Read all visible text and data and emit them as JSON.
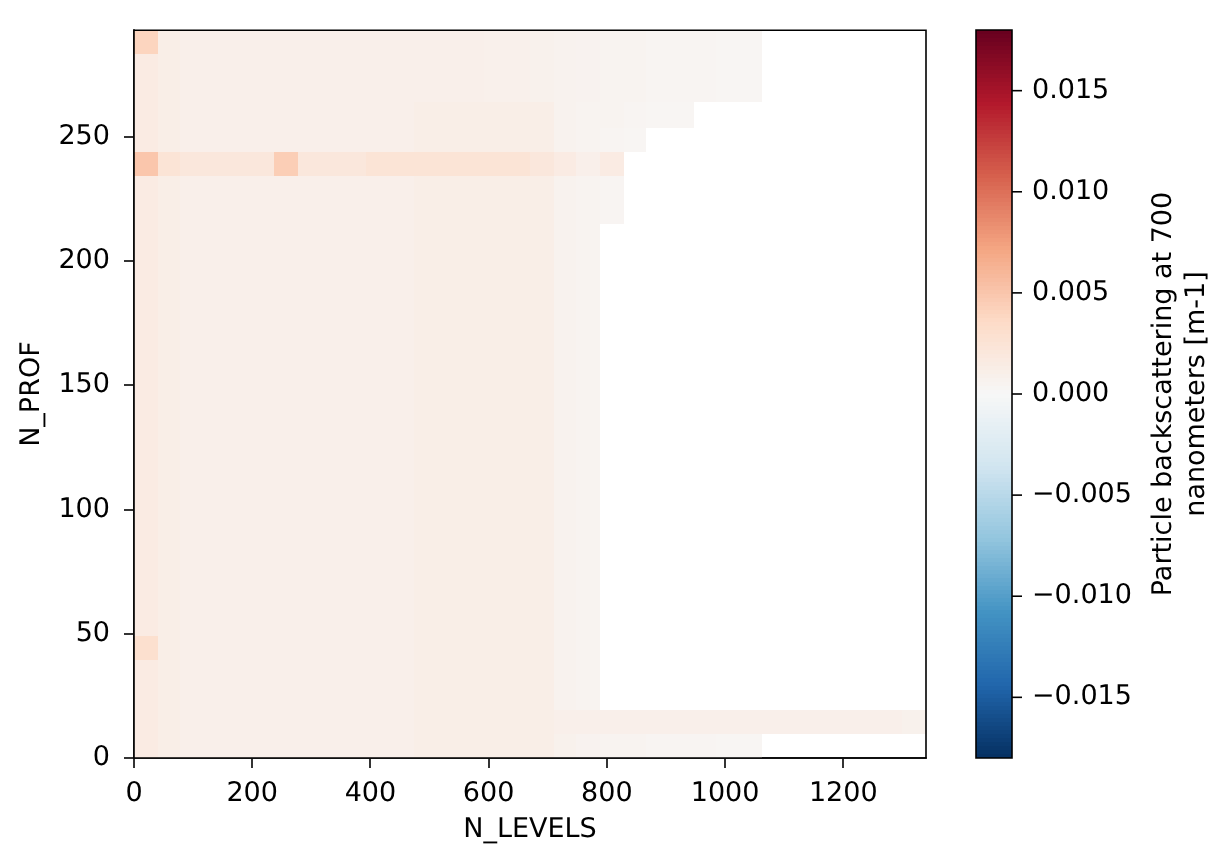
{
  "chart_data": {
    "type": "heatmap",
    "xlabel": "N_LEVELS",
    "ylabel": "N_PROF",
    "clabel": "Particle backscattering at 700 nanometers [m-1]",
    "xlim": [
      0,
      1340
    ],
    "xticks": [
      0,
      200,
      400,
      600,
      800,
      1000,
      1200
    ],
    "ylim": [
      0,
      293
    ],
    "yticks": [
      0,
      50,
      100,
      150,
      200,
      250
    ],
    "clim": [
      -0.018,
      0.018
    ],
    "cticks": [
      {
        "value": -0.015,
        "label": "−0.015"
      },
      {
        "value": -0.01,
        "label": "−0.010"
      },
      {
        "value": -0.005,
        "label": "−0.005"
      },
      {
        "value": 0,
        "label": "0.000"
      },
      0.005,
      {
        "value": 0.01,
        "label": "0.010"
      },
      0.015
    ],
    "cells": [
      [
        0.004,
        0.0012,
        0.001,
        0.001,
        0.001,
        0.001,
        0.001,
        0.001,
        0.001,
        0.001,
        0.001,
        0.001,
        0.001,
        0.001,
        0.001,
        0.0009,
        0.0009,
        0.0008,
        0.0007,
        0.0006,
        0.0005,
        0.0005,
        0.0004,
        0.0004,
        0.0004,
        0.0003,
        0.0003,
        null,
        null,
        null,
        null,
        null,
        null,
        null
      ],
      [
        0.0015,
        0.0012,
        0.001,
        0.001,
        0.001,
        0.001,
        0.001,
        0.001,
        0.001,
        0.001,
        0.001,
        0.001,
        0.001,
        0.001,
        0.001,
        0.0009,
        0.0009,
        0.0008,
        0.0007,
        0.0006,
        0.0005,
        0.0005,
        0.0004,
        0.0004,
        0.0004,
        0.0003,
        0.0003,
        null,
        null,
        null,
        null,
        null,
        null,
        null
      ],
      [
        0.0015,
        0.0012,
        0.001,
        0.001,
        0.001,
        0.001,
        0.001,
        0.001,
        0.001,
        0.001,
        0.001,
        0.001,
        0.001,
        0.001,
        0.001,
        0.0009,
        0.0009,
        0.0008,
        0.0007,
        0.0006,
        0.0005,
        0.0005,
        0.0004,
        0.0004,
        0.0004,
        0.0003,
        0.0003,
        null,
        null,
        null,
        null,
        null,
        null,
        null
      ],
      [
        0.0015,
        0.0012,
        0.001,
        0.001,
        0.001,
        0.001,
        0.001,
        0.001,
        0.001,
        0.001,
        0.001,
        0.001,
        0.0012,
        0.0012,
        0.0012,
        0.0012,
        0.0012,
        0.0012,
        0.0007,
        0.0005,
        0.0005,
        0.0004,
        0.0003,
        0.0003,
        null,
        null,
        null,
        null,
        null,
        null,
        null,
        null,
        null,
        null
      ],
      [
        0.0015,
        0.0012,
        0.001,
        0.001,
        0.001,
        0.001,
        0.001,
        0.001,
        0.001,
        0.001,
        0.001,
        0.001,
        0.0012,
        0.0012,
        0.0012,
        0.0012,
        0.0012,
        0.0012,
        0.0007,
        0.0005,
        0.0004,
        0.0003,
        null,
        null,
        null,
        null,
        null,
        null,
        null,
        null,
        null,
        null,
        null,
        null
      ],
      [
        0.005,
        0.0025,
        0.002,
        0.002,
        0.002,
        0.002,
        0.0045,
        0.002,
        0.002,
        0.002,
        0.0025,
        0.0025,
        0.0025,
        0.0025,
        0.0025,
        0.0025,
        0.0025,
        0.002,
        0.0015,
        0.001,
        0.0015,
        null,
        null,
        null,
        null,
        null,
        null,
        null,
        null,
        null,
        null,
        null,
        null,
        null
      ],
      [
        0.0015,
        0.0012,
        0.001,
        0.001,
        0.001,
        0.001,
        0.001,
        0.001,
        0.001,
        0.001,
        0.001,
        0.001,
        0.0012,
        0.0012,
        0.0012,
        0.0012,
        0.0012,
        0.0012,
        0.0007,
        0.0005,
        0.0004,
        null,
        null,
        null,
        null,
        null,
        null,
        null,
        null,
        null,
        null,
        null,
        null,
        null
      ],
      [
        0.0015,
        0.0012,
        0.001,
        0.001,
        0.001,
        0.001,
        0.001,
        0.001,
        0.001,
        0.001,
        0.001,
        0.001,
        0.0012,
        0.0012,
        0.0012,
        0.0012,
        0.0012,
        0.0012,
        0.0007,
        0.0005,
        0.0004,
        null,
        null,
        null,
        null,
        null,
        null,
        null,
        null,
        null,
        null,
        null,
        null,
        null
      ],
      [
        0.0015,
        0.0012,
        0.001,
        0.001,
        0.001,
        0.001,
        0.001,
        0.001,
        0.001,
        0.001,
        0.001,
        0.001,
        0.0012,
        0.0012,
        0.0012,
        0.0012,
        0.0012,
        0.0012,
        0.0007,
        0.0005,
        null,
        null,
        null,
        null,
        null,
        null,
        null,
        null,
        null,
        null,
        null,
        null,
        null,
        null
      ],
      [
        0.0015,
        0.0012,
        0.001,
        0.001,
        0.001,
        0.001,
        0.001,
        0.001,
        0.001,
        0.001,
        0.001,
        0.001,
        0.0012,
        0.0012,
        0.0012,
        0.0012,
        0.0012,
        0.0012,
        0.0007,
        0.0005,
        null,
        null,
        null,
        null,
        null,
        null,
        null,
        null,
        null,
        null,
        null,
        null,
        null,
        null
      ],
      [
        0.0015,
        0.0012,
        0.001,
        0.001,
        0.001,
        0.001,
        0.001,
        0.001,
        0.001,
        0.001,
        0.001,
        0.001,
        0.0012,
        0.0012,
        0.0012,
        0.0012,
        0.0012,
        0.0012,
        0.0007,
        0.0005,
        null,
        null,
        null,
        null,
        null,
        null,
        null,
        null,
        null,
        null,
        null,
        null,
        null,
        null
      ],
      [
        0.0015,
        0.0012,
        0.001,
        0.001,
        0.001,
        0.001,
        0.001,
        0.001,
        0.001,
        0.001,
        0.001,
        0.001,
        0.0012,
        0.0012,
        0.0012,
        0.0012,
        0.0012,
        0.0012,
        0.0007,
        0.0005,
        null,
        null,
        null,
        null,
        null,
        null,
        null,
        null,
        null,
        null,
        null,
        null,
        null,
        null
      ],
      [
        0.0015,
        0.0012,
        0.001,
        0.001,
        0.001,
        0.001,
        0.001,
        0.001,
        0.001,
        0.001,
        0.001,
        0.001,
        0.0012,
        0.0012,
        0.0012,
        0.0012,
        0.0012,
        0.0012,
        0.0007,
        0.0005,
        null,
        null,
        null,
        null,
        null,
        null,
        null,
        null,
        null,
        null,
        null,
        null,
        null,
        null
      ],
      [
        0.0015,
        0.0012,
        0.001,
        0.001,
        0.001,
        0.001,
        0.001,
        0.001,
        0.001,
        0.001,
        0.001,
        0.001,
        0.0012,
        0.0012,
        0.0012,
        0.0012,
        0.0012,
        0.0012,
        0.0007,
        0.0005,
        null,
        null,
        null,
        null,
        null,
        null,
        null,
        null,
        null,
        null,
        null,
        null,
        null,
        null
      ],
      [
        0.0015,
        0.0012,
        0.001,
        0.001,
        0.001,
        0.001,
        0.001,
        0.001,
        0.001,
        0.001,
        0.001,
        0.001,
        0.0012,
        0.0012,
        0.0012,
        0.0012,
        0.0012,
        0.0012,
        0.0007,
        0.0005,
        null,
        null,
        null,
        null,
        null,
        null,
        null,
        null,
        null,
        null,
        null,
        null,
        null,
        null
      ],
      [
        0.0015,
        0.0012,
        0.001,
        0.001,
        0.001,
        0.001,
        0.001,
        0.001,
        0.001,
        0.001,
        0.001,
        0.001,
        0.0012,
        0.0012,
        0.0012,
        0.0012,
        0.0012,
        0.0012,
        0.0007,
        0.0005,
        null,
        null,
        null,
        null,
        null,
        null,
        null,
        null,
        null,
        null,
        null,
        null,
        null,
        null
      ],
      [
        0.0015,
        0.0012,
        0.001,
        0.001,
        0.001,
        0.001,
        0.001,
        0.001,
        0.001,
        0.001,
        0.001,
        0.001,
        0.0012,
        0.0012,
        0.0012,
        0.0012,
        0.0012,
        0.0012,
        0.0007,
        0.0005,
        null,
        null,
        null,
        null,
        null,
        null,
        null,
        null,
        null,
        null,
        null,
        null,
        null,
        null
      ],
      [
        0.0015,
        0.0012,
        0.001,
        0.001,
        0.001,
        0.001,
        0.001,
        0.001,
        0.001,
        0.001,
        0.001,
        0.001,
        0.0012,
        0.0012,
        0.0012,
        0.0012,
        0.0012,
        0.0012,
        0.0007,
        0.0005,
        null,
        null,
        null,
        null,
        null,
        null,
        null,
        null,
        null,
        null,
        null,
        null,
        null,
        null
      ],
      [
        0.0015,
        0.0012,
        0.001,
        0.001,
        0.001,
        0.001,
        0.001,
        0.001,
        0.001,
        0.001,
        0.001,
        0.001,
        0.0012,
        0.0012,
        0.0012,
        0.0012,
        0.0012,
        0.0012,
        0.0007,
        0.0005,
        null,
        null,
        null,
        null,
        null,
        null,
        null,
        null,
        null,
        null,
        null,
        null,
        null,
        null
      ],
      [
        0.0015,
        0.0012,
        0.001,
        0.001,
        0.001,
        0.001,
        0.001,
        0.001,
        0.001,
        0.001,
        0.001,
        0.001,
        0.0012,
        0.0012,
        0.0012,
        0.0012,
        0.0012,
        0.0012,
        0.0007,
        0.0005,
        null,
        null,
        null,
        null,
        null,
        null,
        null,
        null,
        null,
        null,
        null,
        null,
        null,
        null
      ],
      [
        0.0015,
        0.0012,
        0.001,
        0.001,
        0.001,
        0.001,
        0.001,
        0.001,
        0.001,
        0.001,
        0.001,
        0.001,
        0.0012,
        0.0012,
        0.0012,
        0.0012,
        0.0012,
        0.0012,
        0.0007,
        0.0005,
        null,
        null,
        null,
        null,
        null,
        null,
        null,
        null,
        null,
        null,
        null,
        null,
        null,
        null
      ],
      [
        0.0015,
        0.0012,
        0.001,
        0.001,
        0.001,
        0.001,
        0.001,
        0.001,
        0.001,
        0.001,
        0.001,
        0.001,
        0.0012,
        0.0012,
        0.0012,
        0.0012,
        0.0012,
        0.0012,
        0.0007,
        0.0005,
        null,
        null,
        null,
        null,
        null,
        null,
        null,
        null,
        null,
        null,
        null,
        null,
        null,
        null
      ],
      [
        0.0015,
        0.0012,
        0.001,
        0.001,
        0.001,
        0.001,
        0.001,
        0.001,
        0.001,
        0.001,
        0.001,
        0.001,
        0.0012,
        0.0012,
        0.0012,
        0.0012,
        0.0012,
        0.0012,
        0.0007,
        0.0005,
        null,
        null,
        null,
        null,
        null,
        null,
        null,
        null,
        null,
        null,
        null,
        null,
        null,
        null
      ],
      [
        0.0015,
        0.0012,
        0.001,
        0.001,
        0.001,
        0.001,
        0.001,
        0.001,
        0.001,
        0.001,
        0.001,
        0.001,
        0.0012,
        0.0012,
        0.0012,
        0.0012,
        0.0012,
        0.0012,
        0.0007,
        0.0005,
        null,
        null,
        null,
        null,
        null,
        null,
        null,
        null,
        null,
        null,
        null,
        null,
        null,
        null
      ],
      [
        0.0015,
        0.0012,
        0.001,
        0.001,
        0.001,
        0.001,
        0.001,
        0.001,
        0.001,
        0.001,
        0.001,
        0.001,
        0.0012,
        0.0012,
        0.0012,
        0.0012,
        0.0012,
        0.0012,
        0.0007,
        0.0005,
        null,
        null,
        null,
        null,
        null,
        null,
        null,
        null,
        null,
        null,
        null,
        null,
        null,
        null
      ],
      [
        0.003,
        0.0012,
        0.001,
        0.001,
        0.001,
        0.001,
        0.001,
        0.001,
        0.001,
        0.001,
        0.001,
        0.001,
        0.0012,
        0.0012,
        0.0012,
        0.0012,
        0.0012,
        0.0012,
        0.0007,
        0.0005,
        null,
        null,
        null,
        null,
        null,
        null,
        null,
        null,
        null,
        null,
        null,
        null,
        null,
        null
      ],
      [
        0.0015,
        0.0012,
        0.001,
        0.001,
        0.001,
        0.001,
        0.001,
        0.001,
        0.001,
        0.001,
        0.001,
        0.001,
        0.0012,
        0.0012,
        0.0012,
        0.0012,
        0.0012,
        0.0012,
        0.0007,
        0.0005,
        null,
        null,
        null,
        null,
        null,
        null,
        null,
        null,
        null,
        null,
        null,
        null,
        null,
        null
      ],
      [
        0.0015,
        0.0012,
        0.001,
        0.001,
        0.001,
        0.001,
        0.001,
        0.001,
        0.001,
        0.001,
        0.001,
        0.001,
        0.0012,
        0.0012,
        0.0012,
        0.0012,
        0.0012,
        0.0012,
        0.0007,
        0.0005,
        null,
        null,
        null,
        null,
        null,
        null,
        null,
        null,
        null,
        null,
        null,
        null,
        null,
        null
      ],
      [
        0.0015,
        0.0012,
        0.001,
        0.001,
        0.001,
        0.001,
        0.001,
        0.001,
        0.001,
        0.001,
        0.001,
        0.001,
        0.0012,
        0.0012,
        0.0012,
        0.0012,
        0.0012,
        0.0012,
        0.001,
        0.001,
        0.001,
        0.001,
        0.001,
        0.001,
        0.001,
        0.001,
        0.001,
        0.001,
        0.001,
        0.001,
        0.001,
        0.001,
        0.001,
        0.0008
      ],
      [
        0.0015,
        0.0012,
        0.001,
        0.001,
        0.001,
        0.001,
        0.001,
        0.001,
        0.001,
        0.001,
        0.001,
        0.001,
        0.0012,
        0.0012,
        0.0012,
        0.0012,
        0.0012,
        0.0012,
        0.0008,
        0.0006,
        0.0005,
        0.0005,
        0.0004,
        0.0004,
        0.0004,
        0.0003,
        0.0003,
        null,
        null,
        null,
        null,
        null,
        null,
        null
      ]
    ]
  }
}
